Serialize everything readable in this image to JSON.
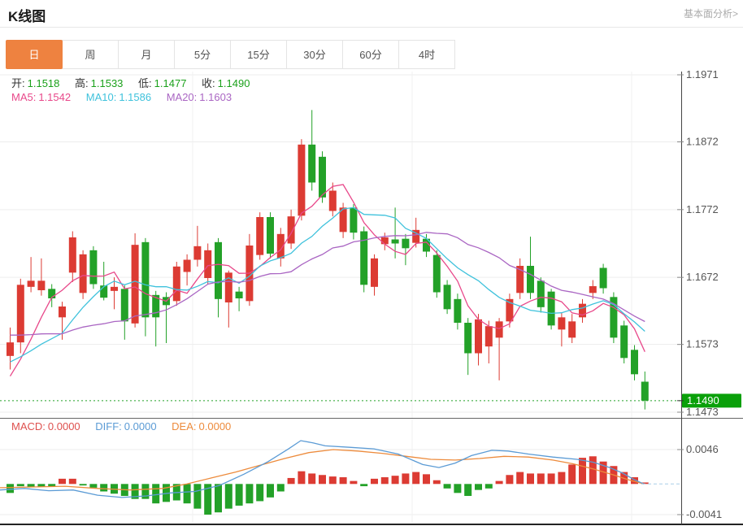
{
  "header": {
    "title": "K线图",
    "link_top_right": "基本面分析>"
  },
  "tabs": [
    {
      "label": "日",
      "active": true
    },
    {
      "label": "周",
      "active": false
    },
    {
      "label": "月",
      "active": false
    },
    {
      "label": "5分",
      "active": false
    },
    {
      "label": "15分",
      "active": false
    },
    {
      "label": "30分",
      "active": false
    },
    {
      "label": "60分",
      "active": false
    },
    {
      "label": "4时",
      "active": false
    }
  ],
  "legend": {
    "ohlc": [
      {
        "label": "开:",
        "value": "1.1518"
      },
      {
        "label": "高:",
        "value": "1.1533"
      },
      {
        "label": "低:",
        "value": "1.1477"
      },
      {
        "label": "收:",
        "value": "1.1490"
      }
    ],
    "ma": [
      {
        "label": "MA5:",
        "value": "1.1542"
      },
      {
        "label": "MA10:",
        "value": "1.1586"
      },
      {
        "label": "MA20:",
        "value": "1.1603"
      }
    ],
    "macd": [
      {
        "label": "MACD:",
        "value": "0.0000"
      },
      {
        "label": "DIFF:",
        "value": "0.0000"
      },
      {
        "label": "DEA:",
        "value": "0.0000"
      }
    ]
  },
  "colors": {
    "up": "#dc3b33",
    "down": "#23a128",
    "ma5": "#e8488a",
    "ma10": "#3fc2dc",
    "ma20": "#aa66c3",
    "diff": "#5b9bd5",
    "dea": "#ed8b3c",
    "macd_label": "#de504e",
    "tab_active_bg": "#ee8240",
    "price_badge_bg": "#0aa00a",
    "ohlc_value": "#1ba11b",
    "axis_text": "#555555",
    "grid": "#ededed",
    "zero_dash": "#a8cde8",
    "border_dark": "#444444"
  },
  "price_axis": {
    "ticks": [
      1.1971,
      1.1872,
      1.1772,
      1.1672,
      1.1573,
      1.1473
    ],
    "current_price": 1.149
  },
  "macd_axis": {
    "ticks": [
      0.0046,
      -0.0041
    ]
  },
  "chart_data": [
    {
      "type": "candlestick",
      "title": "K线图",
      "ohlc_format": [
        "open",
        "high",
        "low",
        "close"
      ],
      "y_range": [
        1.1473,
        1.1971
      ],
      "last_price": 1.149,
      "ma_periods": [
        5,
        10,
        20
      ],
      "ma_seed_closes": [
        1.1668,
        1.166,
        1.1652,
        1.1645,
        1.1638,
        1.163,
        1.1622,
        1.1615,
        1.1608,
        1.16,
        1.1592,
        1.1585,
        1.1578,
        1.157,
        1.156,
        1.1548,
        1.1535,
        1.152,
        1.1505,
        1.1495
      ],
      "candles": [
        [
          1.1556,
          1.1598,
          1.1536,
          1.1576
        ],
        [
          1.1576,
          1.167,
          1.156,
          1.1661
        ],
        [
          1.1658,
          1.1702,
          1.165,
          1.1667
        ],
        [
          1.1653,
          1.17,
          1.1645,
          1.1667
        ],
        [
          1.1655,
          1.1662,
          1.1628,
          1.1641
        ],
        [
          1.1613,
          1.1636,
          1.158,
          1.1629
        ],
        [
          1.1679,
          1.174,
          1.1665,
          1.1731
        ],
        [
          1.1649,
          1.1712,
          1.164,
          1.1706
        ],
        [
          1.1712,
          1.1718,
          1.1655,
          1.1662
        ],
        [
          1.166,
          1.1695,
          1.1638,
          1.1642
        ],
        [
          1.1652,
          1.1672,
          1.1625,
          1.1658
        ],
        [
          1.1655,
          1.166,
          1.158,
          1.1607
        ],
        [
          1.1604,
          1.1737,
          1.1598,
          1.172
        ],
        [
          1.1724,
          1.173,
          1.1585,
          1.1613
        ],
        [
          1.1646,
          1.1652,
          1.157,
          1.1613
        ],
        [
          1.1643,
          1.165,
          1.1575,
          1.1631
        ],
        [
          1.1637,
          1.1695,
          1.163,
          1.1688
        ],
        [
          1.168,
          1.1706,
          1.166,
          1.1698
        ],
        [
          1.1698,
          1.1748,
          1.1688,
          1.1718
        ],
        [
          1.1671,
          1.1722,
          1.1662,
          1.1712
        ],
        [
          1.1724,
          1.173,
          1.1613,
          1.164
        ],
        [
          1.1635,
          1.1682,
          1.1598,
          1.1679
        ],
        [
          1.1651,
          1.1658,
          1.1622,
          1.1641
        ],
        [
          1.1637,
          1.1736,
          1.163,
          1.1719
        ],
        [
          1.1705,
          1.1768,
          1.1698,
          1.1761
        ],
        [
          1.1761,
          1.1768,
          1.17,
          1.1707
        ],
        [
          1.17,
          1.1745,
          1.1688,
          1.1736
        ],
        [
          1.1722,
          1.1772,
          1.1714,
          1.1762
        ],
        [
          1.1763,
          1.1876,
          1.1756,
          1.1868
        ],
        [
          1.1868,
          1.1919,
          1.18,
          1.1812
        ],
        [
          1.185,
          1.1858,
          1.1782,
          1.179
        ],
        [
          1.177,
          1.1812,
          1.1762,
          1.18
        ],
        [
          1.1739,
          1.1782,
          1.173,
          1.1775
        ],
        [
          1.1775,
          1.178,
          1.1728,
          1.1738
        ],
        [
          1.174,
          1.1747,
          1.165,
          1.1661
        ],
        [
          1.1658,
          1.1706,
          1.1645,
          1.17
        ],
        [
          1.1721,
          1.1738,
          1.1712,
          1.1731
        ],
        [
          1.1728,
          1.1775,
          1.17,
          1.1722
        ],
        [
          1.1729,
          1.1736,
          1.169,
          1.1715
        ],
        [
          1.1723,
          1.176,
          1.1716,
          1.1742
        ],
        [
          1.1729,
          1.1736,
          1.1702,
          1.171
        ],
        [
          1.1705,
          1.1712,
          1.1642,
          1.165
        ],
        [
          1.1661,
          1.1668,
          1.1618,
          1.1625
        ],
        [
          1.164,
          1.1648,
          1.1595,
          1.1605
        ],
        [
          1.1605,
          1.1612,
          1.1528,
          1.156
        ],
        [
          1.156,
          1.1618,
          1.1542,
          1.161
        ],
        [
          1.157,
          1.1608,
          1.1545,
          1.16
        ],
        [
          1.1583,
          1.1612,
          1.152,
          1.1607
        ],
        [
          1.1607,
          1.1648,
          1.1598,
          1.164
        ],
        [
          1.1649,
          1.17,
          1.164,
          1.1689
        ],
        [
          1.1689,
          1.1732,
          1.164,
          1.1649
        ],
        [
          1.1667,
          1.1672,
          1.162,
          1.1628
        ],
        [
          1.1651,
          1.1655,
          1.1595,
          1.1601
        ],
        [
          1.1595,
          1.162,
          1.157,
          1.1613
        ],
        [
          1.1583,
          1.1618,
          1.1575,
          1.1607
        ],
        [
          1.1613,
          1.164,
          1.1605,
          1.1633
        ],
        [
          1.1649,
          1.1668,
          1.164,
          1.1659
        ],
        [
          1.1686,
          1.1692,
          1.1648,
          1.1656
        ],
        [
          1.1643,
          1.165,
          1.1575,
          1.1583
        ],
        [
          1.1601,
          1.1608,
          1.1545,
          1.1553
        ],
        [
          1.1565,
          1.1572,
          1.152,
          1.1529
        ],
        [
          1.1518,
          1.1533,
          1.1477,
          1.149
        ]
      ]
    },
    {
      "type": "bar",
      "name": "MACD",
      "y_range": [
        -0.0041,
        0.0046
      ],
      "histogram": [
        -0.0012,
        -0.0003,
        -0.0004,
        -0.0004,
        -0.0003,
        0.0007,
        0.0007,
        -0.0002,
        -0.0005,
        -0.001,
        -0.0013,
        -0.0016,
        -0.002,
        -0.002,
        -0.0026,
        -0.0024,
        -0.0022,
        -0.0026,
        -0.0033,
        -0.0041,
        -0.0038,
        -0.0033,
        -0.0029,
        -0.0026,
        -0.0023,
        -0.0018,
        -0.001,
        0.0008,
        0.0017,
        0.0014,
        0.0012,
        0.001,
        0.0009,
        0.0004,
        -0.0003,
        0.0007,
        0.0009,
        0.0011,
        0.0014,
        0.0016,
        0.0013,
        0.0005,
        -0.0006,
        -0.0012,
        -0.0016,
        -0.0008,
        -0.0006,
        0.0004,
        0.0012,
        0.0016,
        0.0014,
        0.0014,
        0.0014,
        0.0016,
        0.0026,
        0.0035,
        0.0037,
        0.003,
        0.0024,
        0.0016,
        0.0009,
        0.0002
      ],
      "series": [
        {
          "name": "DIFF",
          "points": [
            [
              0,
              -0.0008
            ],
            [
              30,
              -0.0006
            ],
            [
              60,
              -0.0009
            ],
            [
              90,
              -0.0008
            ],
            [
              120,
              -0.0015
            ],
            [
              150,
              -0.0018
            ],
            [
              180,
              -0.0016
            ],
            [
              210,
              -0.0012
            ],
            [
              240,
              -0.001
            ],
            [
              270,
              -0.0002
            ],
            [
              300,
              0.0013
            ],
            [
              330,
              0.003
            ],
            [
              355,
              0.0047
            ],
            [
              370,
              0.0058
            ],
            [
              385,
              0.0055
            ],
            [
              400,
              0.0051
            ],
            [
              430,
              0.0049
            ],
            [
              460,
              0.0047
            ],
            [
              490,
              0.004
            ],
            [
              520,
              0.0026
            ],
            [
              540,
              0.0022
            ],
            [
              560,
              0.0028
            ],
            [
              580,
              0.0038
            ],
            [
              605,
              0.0045
            ],
            [
              625,
              0.0044
            ],
            [
              650,
              0.004
            ],
            [
              680,
              0.0036
            ],
            [
              710,
              0.0033
            ],
            [
              730,
              0.0029
            ],
            [
              750,
              0.0022
            ],
            [
              765,
              0.0015
            ],
            [
              780,
              0.0006
            ],
            [
              792,
              0.0
            ]
          ]
        },
        {
          "name": "DEA",
          "points": [
            [
              0,
              -0.0005
            ],
            [
              40,
              -0.0004
            ],
            [
              80,
              -0.0003
            ],
            [
              120,
              -0.0006
            ],
            [
              160,
              -0.0008
            ],
            [
              200,
              -0.0006
            ],
            [
              230,
              0.0
            ],
            [
              260,
              0.0008
            ],
            [
              290,
              0.0016
            ],
            [
              320,
              0.0025
            ],
            [
              350,
              0.0034
            ],
            [
              380,
              0.0042
            ],
            [
              410,
              0.0046
            ],
            [
              440,
              0.0044
            ],
            [
              470,
              0.0041
            ],
            [
              500,
              0.0037
            ],
            [
              530,
              0.0033
            ],
            [
              560,
              0.0032
            ],
            [
              590,
              0.0034
            ],
            [
              620,
              0.0037
            ],
            [
              650,
              0.0036
            ],
            [
              680,
              0.0032
            ],
            [
              705,
              0.0027
            ],
            [
              730,
              0.002
            ],
            [
              755,
              0.0012
            ],
            [
              775,
              0.0005
            ],
            [
              792,
              0.0
            ]
          ]
        }
      ]
    }
  ]
}
